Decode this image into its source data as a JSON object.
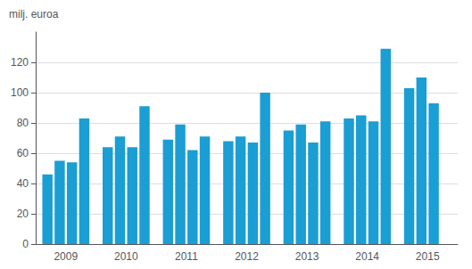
{
  "chart_data": {
    "type": "bar",
    "categories": [
      "2009",
      "2010",
      "2011",
      "2012",
      "2013",
      "2014",
      "2015"
    ],
    "series": [
      {
        "values": [
          46,
          64,
          69,
          68,
          75,
          83,
          103
        ]
      },
      {
        "values": [
          55,
          71,
          79,
          71,
          79,
          85,
          110
        ]
      },
      {
        "values": [
          54,
          64,
          62,
          67,
          67,
          81,
          93
        ]
      },
      {
        "values": [
          83,
          91,
          71,
          100,
          81,
          129,
          null
        ]
      }
    ],
    "color": "#1a9ed4",
    "ylabel": "milj. euroa",
    "ylim": [
      0,
      140
    ],
    "yticks": [
      0,
      20,
      40,
      60,
      80,
      100,
      120
    ],
    "grid": true
  }
}
